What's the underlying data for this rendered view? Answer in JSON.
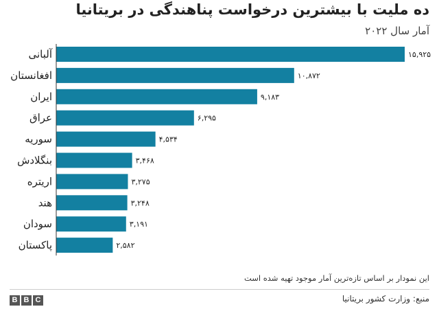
{
  "colors": {
    "bar": "#1380a1",
    "axis": "#333333",
    "text": "#222222"
  },
  "chart_data": {
    "type": "bar",
    "orientation": "horizontal",
    "title": "ده ملیت با بیشترین درخواست پناهندگی در بریتانیا",
    "subtitle": "آمار سال ۲۰۲۲",
    "categories": [
      "آلبانی",
      "افغانستان",
      "ایران",
      "عراق",
      "سوریه",
      "بنگلادش",
      "اریتره",
      "هند",
      "سودان",
      "پاکستان"
    ],
    "values": [
      15925,
      10872,
      9183,
      6295,
      4534,
      3468,
      3275,
      3248,
      3191,
      2582
    ],
    "value_labels": [
      "۱۵,۹۲۵",
      "۱۰,۸۷۲",
      "۹,۱۸۳",
      "۶,۲۹۵",
      "۴,۵۳۴",
      "۳,۴۶۸",
      "۳,۲۷۵",
      "۳,۲۴۸",
      "۳,۱۹۱",
      "۲,۵۸۲"
    ],
    "xlim": [
      0,
      15925
    ],
    "grid": false,
    "legend": "none",
    "footnote": "این نمودار بر اساس تازه‌ترین آمار موجود تهیه شده است",
    "source": "منبع: وزارت کشور بریتانیا"
  },
  "branding": {
    "logo_letters": [
      "B",
      "B",
      "C"
    ]
  }
}
